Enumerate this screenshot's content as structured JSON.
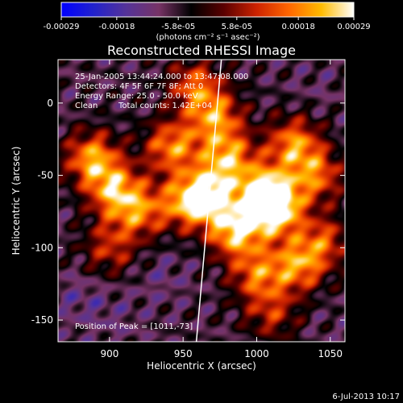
{
  "window_title": "Reconstructed RHESSI Image",
  "colorbar": {
    "tick_labels": [
      "-0.00029",
      "-0.00018",
      "-5.8e-05",
      "5.8e-05",
      "0.00018",
      "0.00029"
    ],
    "tick_values": [
      -0.00029,
      -0.00018,
      -5.8e-05,
      5.8e-05,
      0.00018,
      0.00029
    ],
    "range": [
      -0.00029,
      0.00029
    ],
    "unit_label": "(photons cm⁻² s⁻¹ asec⁻²)",
    "colors": [
      "#0000ff",
      "#2222cc",
      "#553399",
      "#773366",
      "#000000",
      "#5a0000",
      "#cc2200",
      "#ff6600",
      "#ffbb00",
      "#ffffff"
    ]
  },
  "annotations": {
    "time_range": "25-Jan-2005 13:44:24.000 to 13:47:08.000",
    "detectors": "Detectors: 4F 5F 6F 7F 8F; Att 0",
    "energy": "Energy Range: 25.0 - 50.0 keV",
    "method": "Clean",
    "counts": "Total counts: 1.42E+04",
    "peak": "Position of Peak = [1011,-73]"
  },
  "footer_date": "6-Jul-2013 10:17",
  "chart_data": {
    "type": "heatmap",
    "title": "Reconstructed RHESSI Image",
    "xlabel": "Heliocentric X (arcsec)",
    "ylabel": "Heliocentric Y (arcsec)",
    "xlim": [
      865,
      1060
    ],
    "ylim": [
      -165,
      30
    ],
    "x_ticks": [
      900,
      950,
      1000,
      1050
    ],
    "y_ticks": [
      0,
      -50,
      -100,
      -150
    ],
    "value_range": [
      -0.00029,
      0.00029
    ],
    "peak_position": [
      1011,
      -73
    ],
    "limb_line": [
      [
        959,
        -165
      ],
      [
        976,
        30
      ]
    ],
    "sources": [
      {
        "x": 1012,
        "y": -73,
        "value": 0.00029
      },
      {
        "x": 1005,
        "y": -60,
        "value": 0.0002
      },
      {
        "x": 985,
        "y": -88,
        "value": 0.00024
      },
      {
        "x": 968,
        "y": -63,
        "value": 0.00021
      },
      {
        "x": 952,
        "y": -68,
        "value": 0.00017
      },
      {
        "x": 920,
        "y": -75,
        "value": 0.00014
      },
      {
        "x": 903,
        "y": -60,
        "value": 0.00019
      },
      {
        "x": 888,
        "y": -38,
        "value": 0.0002
      },
      {
        "x": 942,
        "y": -30,
        "value": 0.00018
      },
      {
        "x": 980,
        "y": -38,
        "value": 0.00019
      },
      {
        "x": 1025,
        "y": -28,
        "value": 0.00018
      },
      {
        "x": 1040,
        "y": -50,
        "value": 0.00015
      },
      {
        "x": 972,
        "y": -10,
        "value": 0.00017
      },
      {
        "x": 958,
        "y": 12,
        "value": 0.00014
      },
      {
        "x": 1028,
        "y": -112,
        "value": 0.00017
      },
      {
        "x": 1000,
        "y": -118,
        "value": 0.00014
      },
      {
        "x": 1045,
        "y": -95,
        "value": 0.00011
      },
      {
        "x": 900,
        "y": -100,
        "value": 9e-05
      },
      {
        "x": 1010,
        "y": -145,
        "value": 8e-05
      },
      {
        "x": 880,
        "y": -135,
        "value": -0.00012
      },
      {
        "x": 905,
        "y": -150,
        "value": -0.0001
      },
      {
        "x": 935,
        "y": -120,
        "value": -0.00011
      },
      {
        "x": 1045,
        "y": -150,
        "value": -8e-05
      },
      {
        "x": 1040,
        "y": 10,
        "value": -9e-05
      },
      {
        "x": 930,
        "y": 5,
        "value": -7e-05
      }
    ]
  }
}
